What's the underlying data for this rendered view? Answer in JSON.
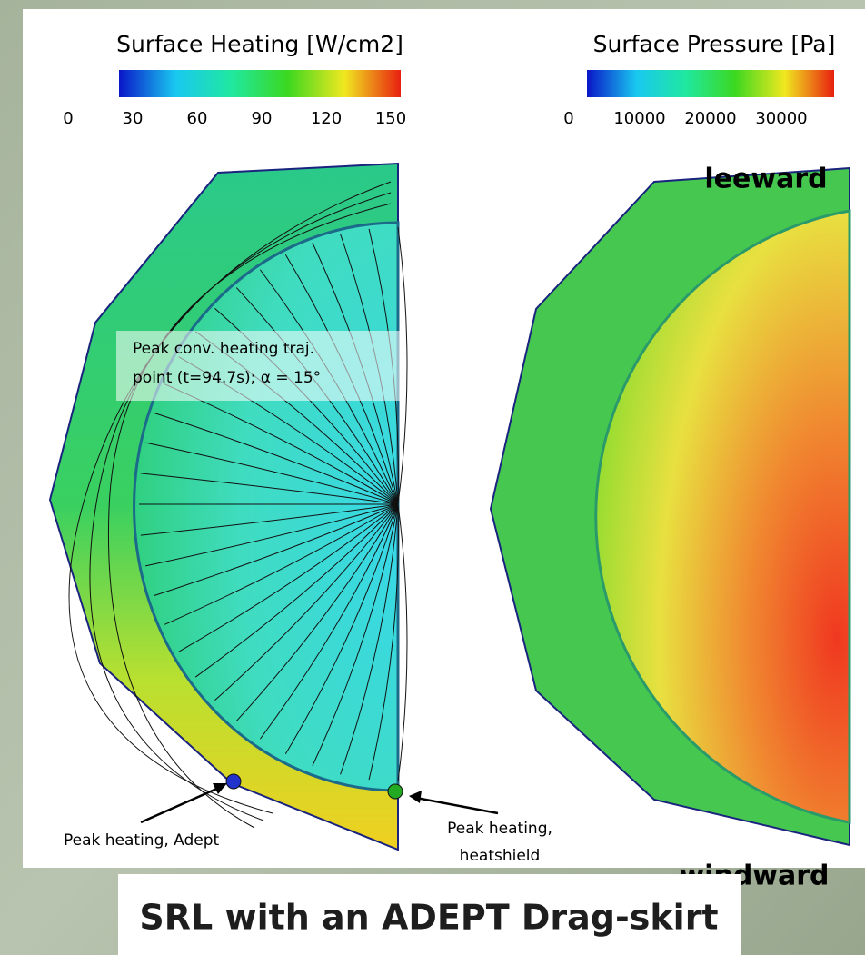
{
  "left_panel": {
    "colorbar_title": "Surface Heating [W/cm2]",
    "colorbar_ticks": [
      0,
      30,
      60,
      90,
      120,
      150
    ],
    "annotation": [
      "Peak conv. heating traj.",
      "point (t=94.7s); α = 15°"
    ],
    "callout_adept": "Peak heating, Adept",
    "callout_heatshield": [
      "Peak heating,",
      "heatshield"
    ]
  },
  "right_panel": {
    "colorbar_title": "Surface Pressure [Pa]",
    "colorbar_ticks": [
      0,
      10000,
      20000,
      30000
    ],
    "top_label": "leeward",
    "bottom_label": "windward"
  },
  "title": "SRL with an ADEPT Drag-skirt"
}
